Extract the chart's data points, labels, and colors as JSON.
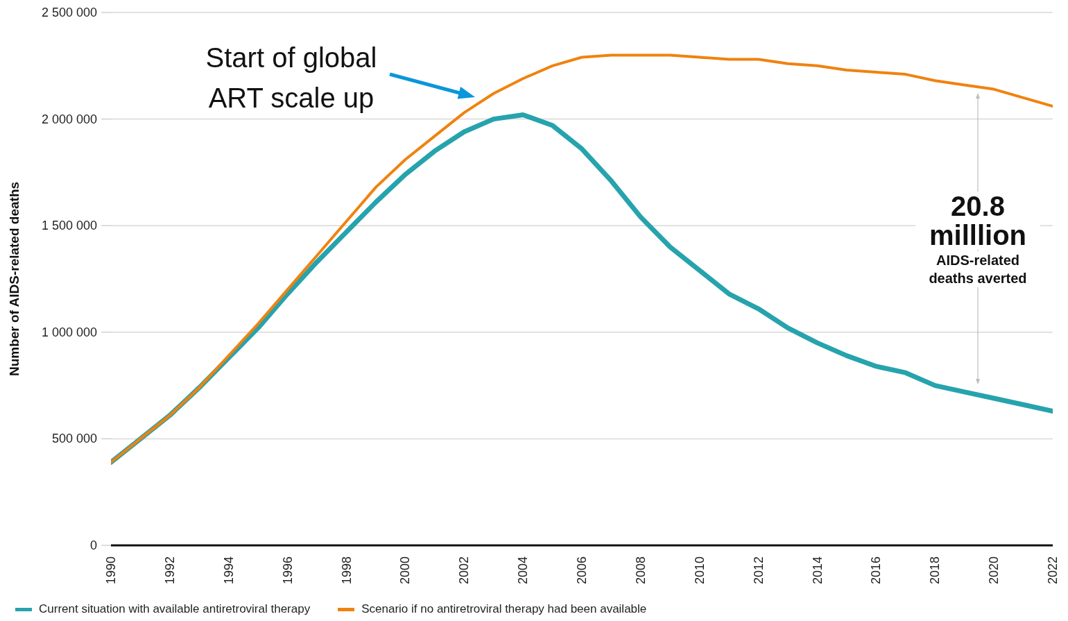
{
  "chart_data": {
    "type": "line",
    "ylabel": "Number of AIDS-related deaths",
    "x": [
      1990,
      1991,
      1992,
      1993,
      1994,
      1995,
      1996,
      1997,
      1998,
      1999,
      2000,
      2001,
      2002,
      2003,
      2004,
      2005,
      2006,
      2007,
      2008,
      2009,
      2010,
      2011,
      2012,
      2013,
      2014,
      2015,
      2016,
      2017,
      2018,
      2019,
      2020,
      2021,
      2022
    ],
    "xlim": [
      1990,
      2022
    ],
    "xticks": [
      1990,
      1992,
      1994,
      1996,
      1998,
      2000,
      2002,
      2004,
      2006,
      2008,
      2010,
      2012,
      2014,
      2016,
      2018,
      2020,
      2022
    ],
    "ylim": [
      0,
      2500000
    ],
    "yticks": [
      {
        "value": 0,
        "label": "0"
      },
      {
        "value": 500000,
        "label": "500 000"
      },
      {
        "value": 1000000,
        "label": "1 000 000"
      },
      {
        "value": 1500000,
        "label": "1 500 000"
      },
      {
        "value": 2000000,
        "label": "2 000 000"
      },
      {
        "value": 2500000,
        "label": "2 500 000"
      }
    ],
    "series": [
      {
        "name": "Current situation with available antiretroviral therapy",
        "color": "#26a3ad",
        "values": [
          390000,
          500000,
          610000,
          740000,
          880000,
          1020000,
          1180000,
          1330000,
          1470000,
          1610000,
          1740000,
          1850000,
          1940000,
          2000000,
          2020000,
          1970000,
          1860000,
          1710000,
          1540000,
          1400000,
          1290000,
          1180000,
          1110000,
          1020000,
          950000,
          890000,
          840000,
          810000,
          750000,
          720000,
          690000,
          660000,
          630000
        ]
      },
      {
        "name": "Scenario if no antiretroviral therapy had been available",
        "color": "#f0820f",
        "values": [
          390000,
          500000,
          610000,
          740000,
          890000,
          1040000,
          1200000,
          1360000,
          1520000,
          1680000,
          1810000,
          1920000,
          2030000,
          2120000,
          2190000,
          2250000,
          2290000,
          2300000,
          2300000,
          2300000,
          2290000,
          2280000,
          2280000,
          2260000,
          2250000,
          2230000,
          2220000,
          2210000,
          2180000,
          2160000,
          2140000,
          2100000,
          2060000
        ]
      }
    ],
    "annotations": [
      "Start of global ART scale up",
      "20.8 milllion",
      "AIDS-related deaths averted"
    ],
    "grid": "y",
    "legend": "bottom left"
  }
}
